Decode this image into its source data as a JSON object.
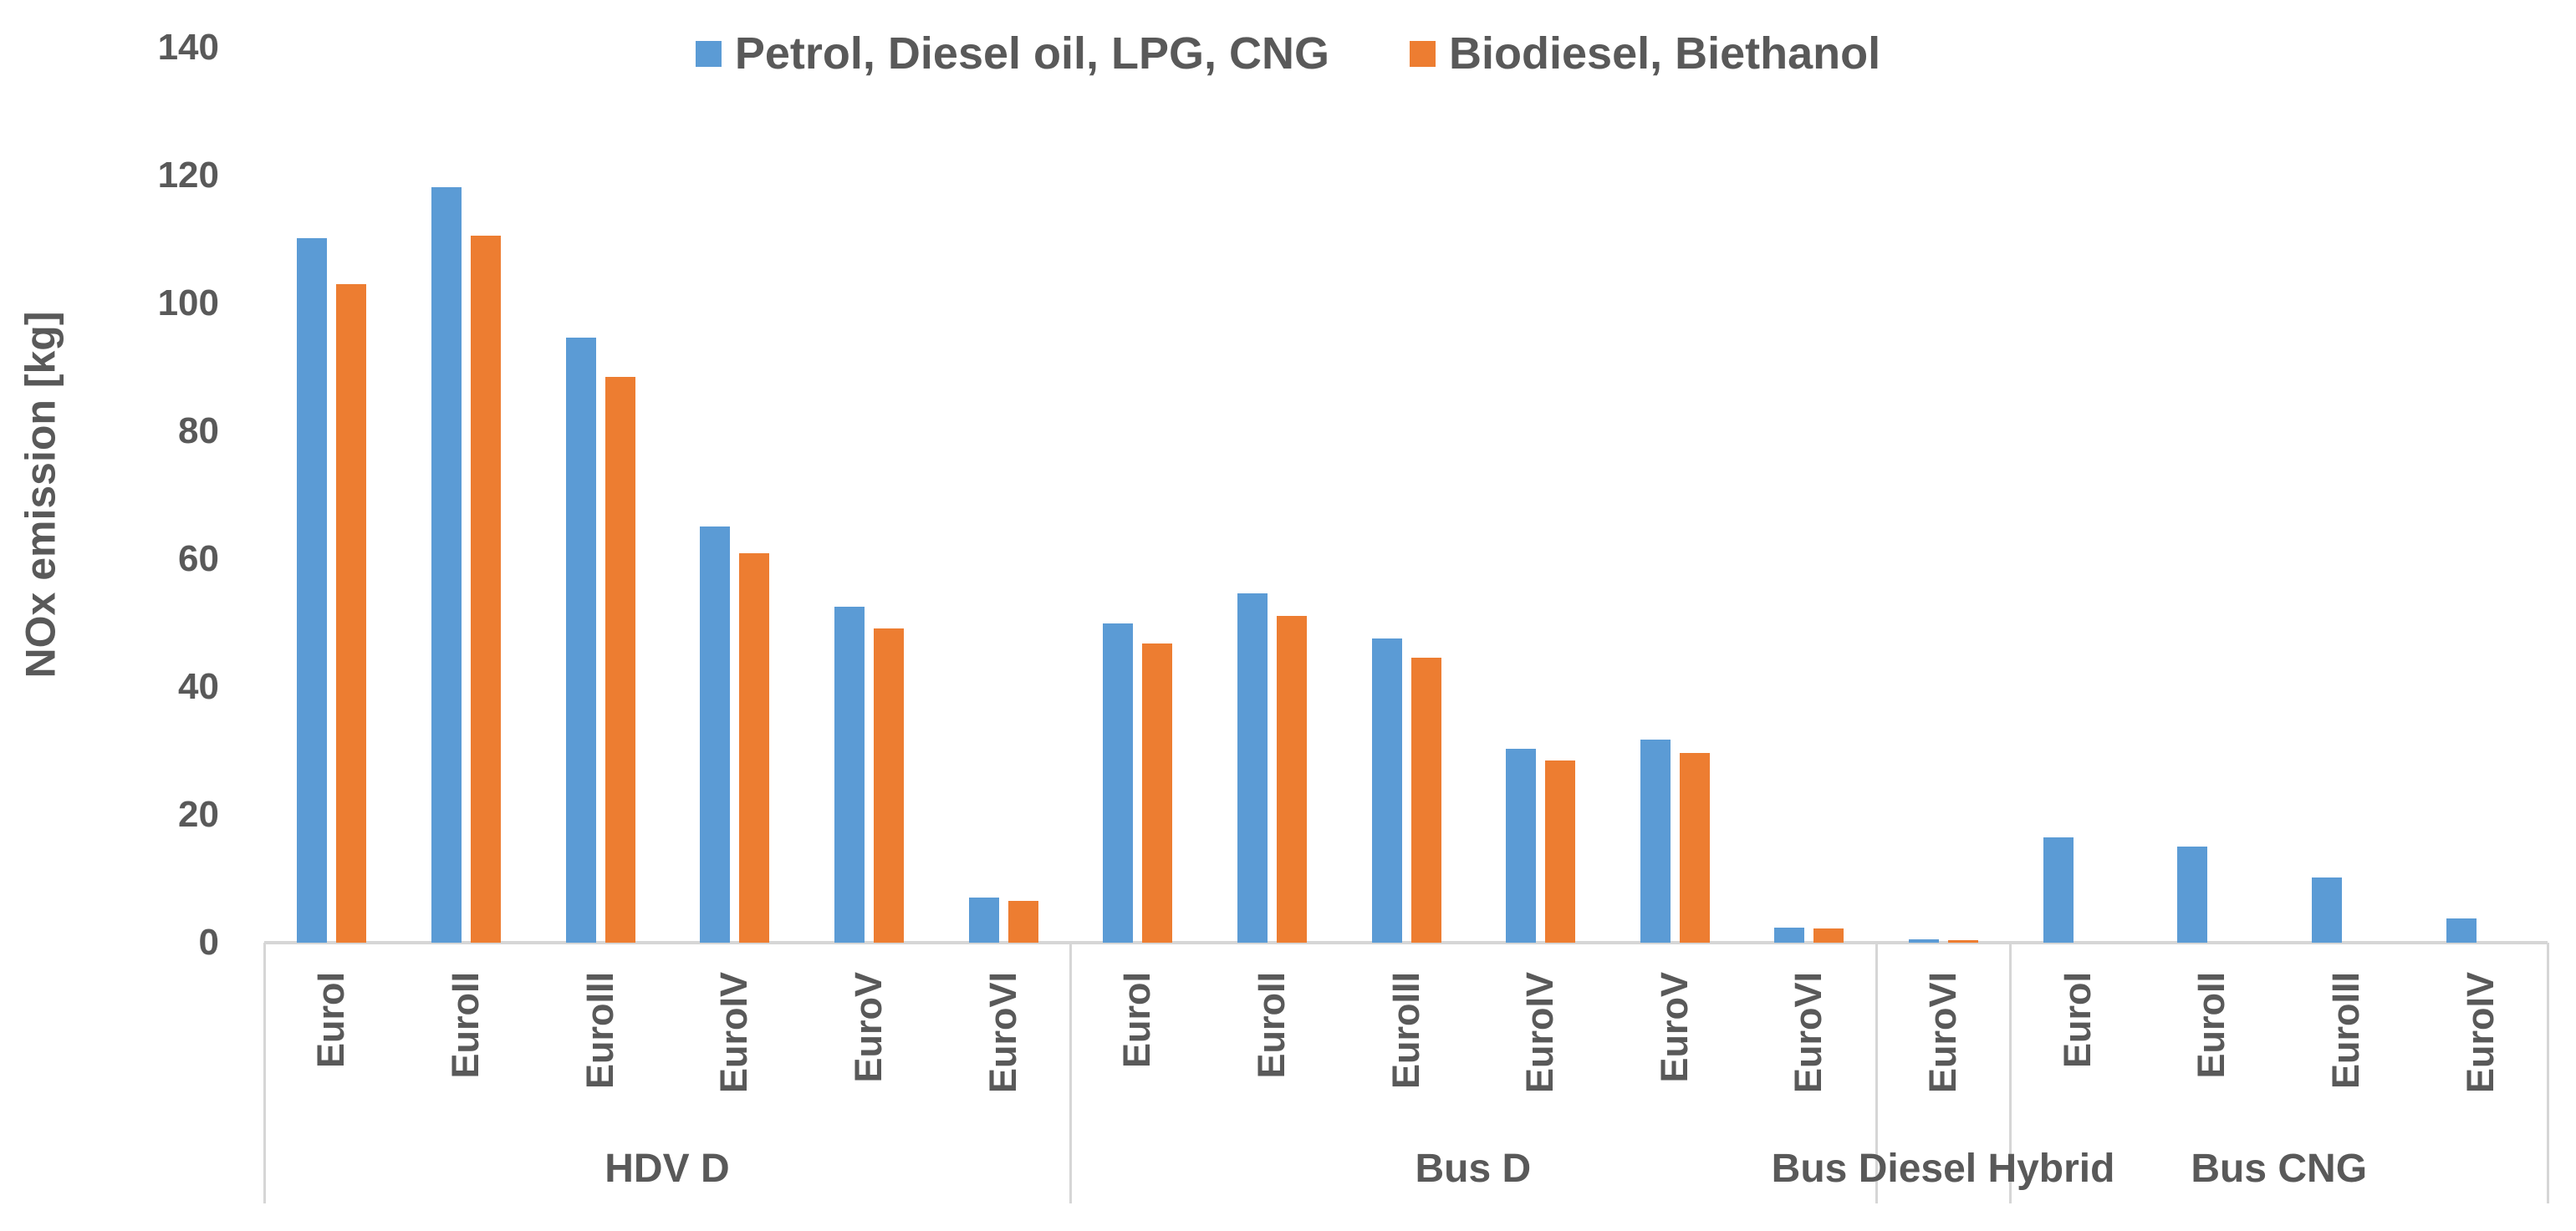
{
  "chart_data": {
    "type": "bar",
    "title": "",
    "ylabel": "NOx emission [kg]",
    "xlabel": "",
    "ylim": [
      0,
      140
    ],
    "yticks": [
      0,
      20,
      40,
      60,
      80,
      100,
      120,
      140
    ],
    "grid": false,
    "legend_position": "top",
    "series": [
      {
        "name": "Petrol, Diesel oil, LPG, CNG",
        "key": "petrol",
        "color": "#5B9BD5"
      },
      {
        "name": "Biodiesel, Biethanol",
        "key": "biodiesel",
        "color": "#ED7D31"
      }
    ],
    "groups": [
      {
        "label": "HDV D",
        "categories": [
          "EuroI",
          "EuroII",
          "EuroIII",
          "EuroIV",
          "EuroV",
          "EuroVI"
        ],
        "petrol": [
          110.2,
          118.2,
          94.6,
          65.1,
          52.5,
          7.0
        ],
        "biodiesel": [
          103.0,
          110.6,
          88.5,
          60.9,
          49.2,
          6.5
        ]
      },
      {
        "label": "Bus D",
        "categories": [
          "EuroI",
          "EuroII",
          "EuroIII",
          "EuroIV",
          "EuroV",
          "EuroVI"
        ],
        "petrol": [
          50.0,
          54.6,
          47.6,
          30.3,
          31.8,
          2.4
        ],
        "biodiesel": [
          46.8,
          51.1,
          44.6,
          28.5,
          29.7,
          2.2
        ]
      },
      {
        "label": "Bus Diesel Hybrid",
        "categories": [
          "EuroVI"
        ],
        "petrol": [
          0.5
        ],
        "biodiesel": [
          0.45
        ]
      },
      {
        "label": "Bus CNG",
        "categories": [
          "EuroI",
          "EuroII",
          "EuroIII",
          "EuroIV"
        ],
        "petrol": [
          16.5,
          15.0,
          10.2,
          3.8
        ],
        "biodiesel": [
          null,
          null,
          null,
          null
        ]
      }
    ]
  },
  "colors": {
    "background": "#FFFFFF",
    "text": "#595959",
    "axis_line": "#D6D6D6",
    "series_blue": "#5B9BD5",
    "series_orange": "#ED7D31"
  }
}
